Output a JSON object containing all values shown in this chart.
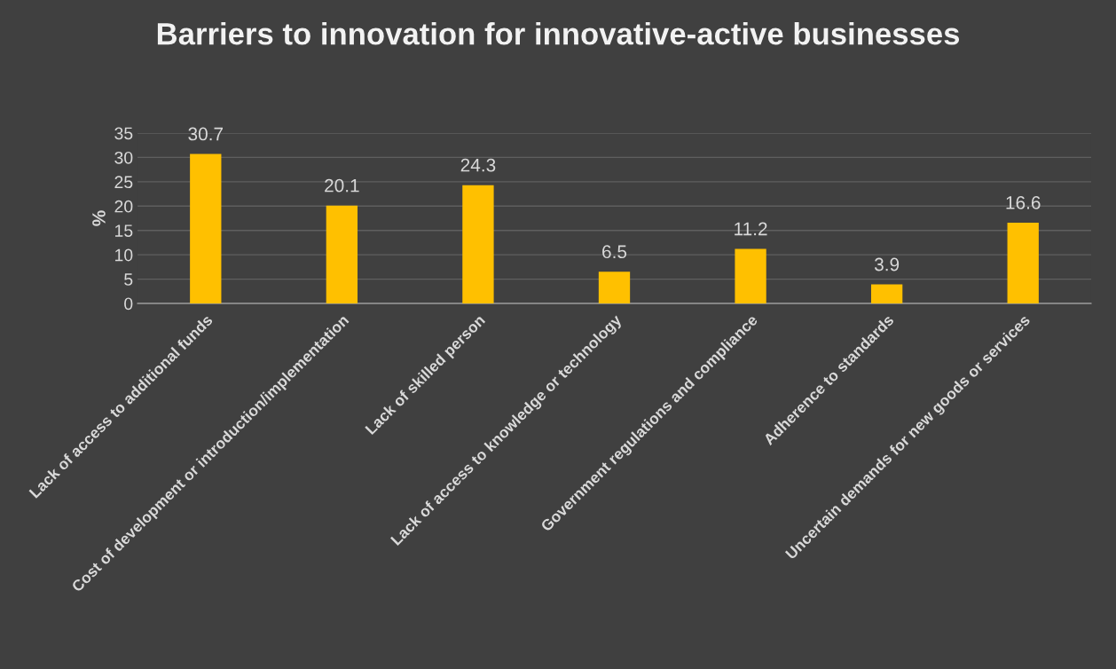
{
  "chart_data": {
    "type": "bar",
    "title": "Barriers to innovation for innovative-active businesses",
    "ylabel": "%",
    "categories": [
      "Lack of access to additional funds",
      "Cost of development or introduction/implementation",
      "Lack of skilled person",
      "Lack of access to knowledge or technology",
      "Government regulations and compliance",
      "Adherence to standards",
      "Uncertain demands for new goods or services"
    ],
    "values": [
      30.7,
      20.1,
      24.3,
      6.5,
      11.2,
      3.9,
      16.6
    ],
    "color": "#ffc000",
    "ylim": [
      0,
      35
    ],
    "yticks": [
      0,
      5,
      10,
      15,
      20,
      25,
      30,
      35
    ],
    "grid": "y",
    "data_labels": true
  }
}
